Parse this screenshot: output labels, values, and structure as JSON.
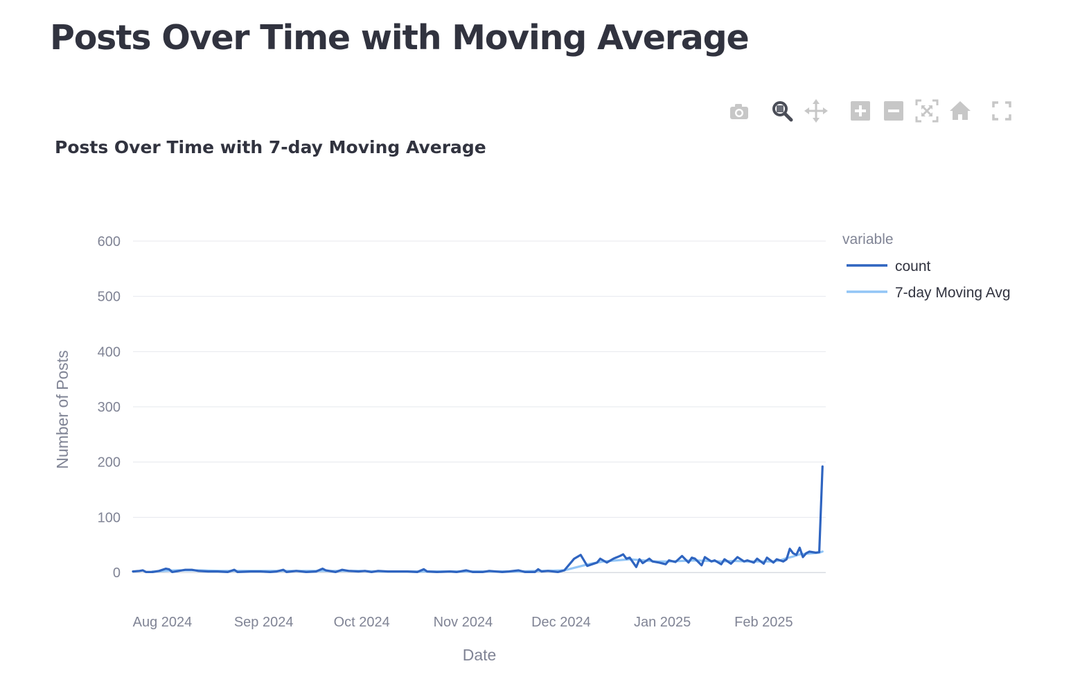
{
  "page": {
    "title": "Posts Over Time with Moving Average"
  },
  "modebar": {
    "buttons": [
      {
        "name": "camera-icon"
      },
      {
        "name": "zoom-icon"
      },
      {
        "name": "pan-icon"
      },
      {
        "name": "zoom-in-icon"
      },
      {
        "name": "zoom-out-icon"
      },
      {
        "name": "autoscale-icon"
      },
      {
        "name": "reset-axes-icon"
      },
      {
        "name": "fullscreen-icon"
      }
    ]
  },
  "chart_data": {
    "type": "line",
    "title": "Posts Over Time with 7-day Moving Average",
    "xlabel": "Date",
    "ylabel": "Number of Posts",
    "x_range": [
      "2024-07-23",
      "2025-02-20"
    ],
    "ylim": [
      -60,
      635
    ],
    "x_ticks": [
      {
        "date": "2024-08-01",
        "label": "Aug 2024"
      },
      {
        "date": "2024-09-01",
        "label": "Sep 2024"
      },
      {
        "date": "2024-10-01",
        "label": "Oct 2024"
      },
      {
        "date": "2024-11-01",
        "label": "Nov 2024"
      },
      {
        "date": "2024-12-01",
        "label": "Dec 2024"
      },
      {
        "date": "2025-01-01",
        "label": "Jan 2025"
      },
      {
        "date": "2025-02-01",
        "label": "Feb 2025"
      }
    ],
    "y_ticks": [
      0,
      100,
      200,
      300,
      400,
      500,
      600
    ],
    "grid": true,
    "legend": {
      "title": "variable",
      "position": "right"
    },
    "series": [
      {
        "name": "count",
        "color": "#2e64c0",
        "points": [
          [
            "2024-07-23",
            2
          ],
          [
            "2024-07-25",
            3
          ],
          [
            "2024-07-26",
            4
          ],
          [
            "2024-07-27",
            1
          ],
          [
            "2024-07-29",
            1
          ],
          [
            "2024-07-31",
            3
          ],
          [
            "2024-08-02",
            7
          ],
          [
            "2024-08-03",
            6
          ],
          [
            "2024-08-04",
            1
          ],
          [
            "2024-08-06",
            3
          ],
          [
            "2024-08-08",
            5
          ],
          [
            "2024-08-10",
            5
          ],
          [
            "2024-08-12",
            3
          ],
          [
            "2024-08-15",
            2
          ],
          [
            "2024-08-18",
            2
          ],
          [
            "2024-08-21",
            1
          ],
          [
            "2024-08-23",
            5
          ],
          [
            "2024-08-24",
            1
          ],
          [
            "2024-08-28",
            2
          ],
          [
            "2024-08-31",
            2
          ],
          [
            "2024-09-03",
            1
          ],
          [
            "2024-09-05",
            2
          ],
          [
            "2024-09-07",
            5
          ],
          [
            "2024-09-08",
            1
          ],
          [
            "2024-09-11",
            3
          ],
          [
            "2024-09-14",
            1
          ],
          [
            "2024-09-17",
            2
          ],
          [
            "2024-09-19",
            7
          ],
          [
            "2024-09-20",
            4
          ],
          [
            "2024-09-23",
            1
          ],
          [
            "2024-09-25",
            5
          ],
          [
            "2024-09-27",
            3
          ],
          [
            "2024-09-30",
            2
          ],
          [
            "2024-10-02",
            3
          ],
          [
            "2024-10-04",
            1
          ],
          [
            "2024-10-06",
            3
          ],
          [
            "2024-10-09",
            2
          ],
          [
            "2024-10-12",
            2
          ],
          [
            "2024-10-15",
            2
          ],
          [
            "2024-10-18",
            1
          ],
          [
            "2024-10-20",
            6
          ],
          [
            "2024-10-21",
            2
          ],
          [
            "2024-10-24",
            1
          ],
          [
            "2024-10-28",
            2
          ],
          [
            "2024-10-30",
            1
          ],
          [
            "2024-11-02",
            4
          ],
          [
            "2024-11-04",
            1
          ],
          [
            "2024-11-07",
            1
          ],
          [
            "2024-11-09",
            3
          ],
          [
            "2024-11-13",
            1
          ],
          [
            "2024-11-15",
            2
          ],
          [
            "2024-11-18",
            4
          ],
          [
            "2024-11-20",
            1
          ],
          [
            "2024-11-23",
            1
          ],
          [
            "2024-11-24",
            6
          ],
          [
            "2024-11-25",
            2
          ],
          [
            "2024-11-27",
            3
          ],
          [
            "2024-11-30",
            1
          ],
          [
            "2024-12-02",
            4
          ],
          [
            "2024-12-04",
            18
          ],
          [
            "2024-12-05",
            25
          ],
          [
            "2024-12-07",
            32
          ],
          [
            "2024-12-09",
            12
          ],
          [
            "2024-12-12",
            18
          ],
          [
            "2024-12-13",
            25
          ],
          [
            "2024-12-15",
            18
          ],
          [
            "2024-12-17",
            25
          ],
          [
            "2024-12-19",
            30
          ],
          [
            "2024-12-20",
            33
          ],
          [
            "2024-12-21",
            25
          ],
          [
            "2024-12-22",
            27
          ],
          [
            "2024-12-24",
            10
          ],
          [
            "2024-12-25",
            24
          ],
          [
            "2024-12-26",
            17
          ],
          [
            "2024-12-28",
            25
          ],
          [
            "2024-12-29",
            20
          ],
          [
            "2024-12-31",
            18
          ],
          [
            "2025-01-02",
            15
          ],
          [
            "2025-01-03",
            22
          ],
          [
            "2025-01-05",
            19
          ],
          [
            "2025-01-07",
            30
          ],
          [
            "2025-01-09",
            18
          ],
          [
            "2025-01-10",
            27
          ],
          [
            "2025-01-11",
            25
          ],
          [
            "2025-01-13",
            13
          ],
          [
            "2025-01-14",
            28
          ],
          [
            "2025-01-16",
            20
          ],
          [
            "2025-01-17",
            22
          ],
          [
            "2025-01-19",
            15
          ],
          [
            "2025-01-20",
            24
          ],
          [
            "2025-01-22",
            16
          ],
          [
            "2025-01-24",
            28
          ],
          [
            "2025-01-26",
            20
          ],
          [
            "2025-01-27",
            22
          ],
          [
            "2025-01-29",
            18
          ],
          [
            "2025-01-30",
            25
          ],
          [
            "2025-02-01",
            16
          ],
          [
            "2025-02-02",
            27
          ],
          [
            "2025-02-04",
            18
          ],
          [
            "2025-02-05",
            24
          ],
          [
            "2025-02-07",
            20
          ],
          [
            "2025-02-08",
            24
          ],
          [
            "2025-02-09",
            43
          ],
          [
            "2025-02-10",
            35
          ],
          [
            "2025-02-11",
            32
          ],
          [
            "2025-02-12",
            45
          ],
          [
            "2025-02-13",
            28
          ],
          [
            "2025-02-14",
            35
          ],
          [
            "2025-02-15",
            38
          ],
          [
            "2025-02-17",
            36
          ],
          [
            "2025-02-18",
            37
          ],
          [
            "2025-02-19",
            192
          ]
        ]
      },
      {
        "name": "7-day Moving Avg",
        "color": "#92c5f6",
        "points": [
          [
            "2024-07-29",
            2
          ],
          [
            "2024-08-05",
            4
          ],
          [
            "2024-08-12",
            4
          ],
          [
            "2024-08-19",
            3
          ],
          [
            "2024-08-26",
            3
          ],
          [
            "2024-09-02",
            3
          ],
          [
            "2024-09-09",
            3
          ],
          [
            "2024-09-16",
            3
          ],
          [
            "2024-09-23",
            3
          ],
          [
            "2024-09-30",
            3
          ],
          [
            "2024-10-07",
            2
          ],
          [
            "2024-10-14",
            2
          ],
          [
            "2024-10-21",
            2
          ],
          [
            "2024-10-28",
            2
          ],
          [
            "2024-11-04",
            2
          ],
          [
            "2024-11-11",
            2
          ],
          [
            "2024-11-18",
            2
          ],
          [
            "2024-11-25",
            3
          ],
          [
            "2024-12-02",
            4
          ],
          [
            "2024-12-06",
            10
          ],
          [
            "2024-12-10",
            16
          ],
          [
            "2024-12-14",
            20
          ],
          [
            "2024-12-18",
            22
          ],
          [
            "2024-12-22",
            24
          ],
          [
            "2024-12-26",
            22
          ],
          [
            "2024-12-30",
            20
          ],
          [
            "2025-01-03",
            20
          ],
          [
            "2025-01-07",
            21
          ],
          [
            "2025-01-11",
            22
          ],
          [
            "2025-01-15",
            21
          ],
          [
            "2025-01-19",
            20
          ],
          [
            "2025-01-23",
            21
          ],
          [
            "2025-01-27",
            20
          ],
          [
            "2025-01-31",
            20
          ],
          [
            "2025-02-04",
            20
          ],
          [
            "2025-02-06",
            22
          ],
          [
            "2025-02-08",
            26
          ],
          [
            "2025-02-10",
            29
          ],
          [
            "2025-02-12",
            33
          ],
          [
            "2025-02-14",
            34
          ],
          [
            "2025-02-16",
            35
          ],
          [
            "2025-02-18",
            36
          ],
          [
            "2025-02-19",
            38
          ]
        ]
      }
    ]
  }
}
